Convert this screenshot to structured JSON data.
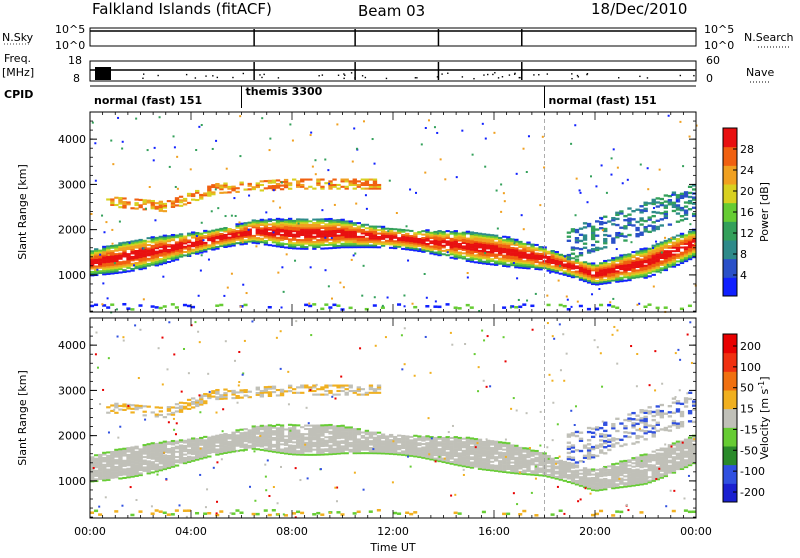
{
  "header": {
    "title": "Falkland Islands (fitACF)",
    "beam": "Beam 03",
    "date": "18/Dec/2010"
  },
  "strips": {
    "nsky": {
      "label": "N.Sky",
      "ticks": [
        "10^5",
        "10^0"
      ]
    },
    "nsearch": {
      "label": "N.Search",
      "ticks": [
        "10^5",
        "10^0"
      ]
    },
    "freq": {
      "label_1": "Freq.",
      "label_2": "[MHz]",
      "ticks": [
        "18",
        "8"
      ]
    },
    "nave": {
      "label": "Nave",
      "ticks": [
        "60",
        "0"
      ]
    },
    "cpid": {
      "label": "CPID",
      "segments": [
        {
          "name": "normal (fast) 151",
          "start_hour": 0,
          "end_hour": 6
        },
        {
          "name": "themis 3300",
          "start_hour": 6,
          "end_hour": 18
        },
        {
          "name": "normal (fast) 151",
          "start_hour": 18,
          "end_hour": 24
        }
      ]
    },
    "step_hours": [
      6.5,
      10.5,
      13.8,
      17.1
    ]
  },
  "chart_data": [
    {
      "type": "heatmap",
      "xlabel": "Time UT",
      "ylabel": "Slant Range [km]",
      "x_ticks": [
        "00:00",
        "04:00",
        "08:00",
        "12:00",
        "16:00",
        "20:00",
        "00:00"
      ],
      "x_tick_hours": [
        0,
        4,
        8,
        12,
        16,
        20,
        24
      ],
      "xlim": [
        0,
        24
      ],
      "ylim": [
        180,
        4600
      ],
      "y_ticks": [
        1000,
        2000,
        3000,
        4000
      ],
      "colorbar": {
        "label": "Power [dB]",
        "ticks": [
          4,
          8,
          12,
          16,
          20,
          24,
          28
        ],
        "range": [
          0,
          32
        ],
        "colors": [
          "#1020ff",
          "#2a50c8",
          "#2e8a8a",
          "#33a05a",
          "#66cc33",
          "#d8d020",
          "#f0a020",
          "#f06010",
          "#e81010"
        ]
      },
      "bands": [
        {
          "name": "main",
          "center_km": [
            [
              0,
              1250
            ],
            [
              2.5,
              1500
            ],
            [
              6.5,
              1950
            ],
            [
              8,
              1900
            ],
            [
              10,
              1900
            ],
            [
              13,
              1750
            ],
            [
              16,
              1550
            ],
            [
              18,
              1350
            ],
            [
              20,
              1000
            ],
            [
              22,
              1250
            ],
            [
              24,
              1700
            ]
          ],
          "width_km": 500,
          "peak_db": 30
        },
        {
          "name": "upper",
          "center_km": [
            [
              1,
              2600
            ],
            [
              3,
              2500
            ],
            [
              5,
              2900
            ],
            [
              8,
              3000
            ],
            [
              11,
              3000
            ]
          ],
          "width_km": 220,
          "peak_db": 20
        },
        {
          "name": "far",
          "center_km": [
            [
              18.8,
              1700
            ],
            [
              21,
              2100
            ],
            [
              24,
              2700
            ]
          ],
          "width_km": 700,
          "peak_db": 14
        }
      ]
    },
    {
      "type": "heatmap",
      "xlabel": "Time UT",
      "ylabel": "Slant Range [km]",
      "x_ticks": [
        "00:00",
        "04:00",
        "08:00",
        "12:00",
        "16:00",
        "20:00",
        "00:00"
      ],
      "x_tick_hours": [
        0,
        4,
        8,
        12,
        16,
        20,
        24
      ],
      "xlim": [
        0,
        24
      ],
      "ylim": [
        180,
        4600
      ],
      "y_ticks": [
        1000,
        2000,
        3000,
        4000
      ],
      "colorbar": {
        "label": "Velocity [m s^-1]",
        "ticks": [
          200,
          100,
          50,
          15,
          -15,
          -50,
          -100,
          -200
        ],
        "colors": [
          "#1a20d0",
          "#3050e0",
          "#2a8a2a",
          "#66cc33",
          "#c0c0b8",
          "#f0b020",
          "#f07010",
          "#f03010",
          "#e80000"
        ]
      },
      "bands": [
        {
          "name": "main",
          "velocity_ms": [
            -15,
            15
          ],
          "color": "#c0c0b8"
        },
        {
          "name": "upper",
          "velocity_ms": [
            -100,
            -50
          ],
          "color": "#f0b020"
        }
      ]
    }
  ]
}
